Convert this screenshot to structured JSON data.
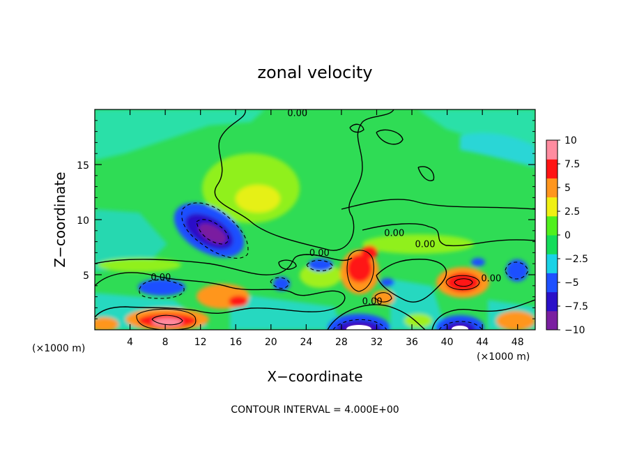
{
  "chart_data": {
    "type": "heatmap",
    "title": "zonal velocity",
    "xlabel": "X−coordinate",
    "ylabel": "Z−coordinate",
    "x_unit_left": "(×1000 m)",
    "x_unit_right": "(×1000 m)",
    "footer": "CONTOUR INTERVAL = 4.000E+00",
    "xlim": [
      0,
      50
    ],
    "ylim": [
      0,
      20
    ],
    "x_ticks": [
      4,
      8,
      12,
      16,
      20,
      24,
      28,
      32,
      36,
      40,
      44,
      48
    ],
    "y_ticks": [
      5,
      10,
      15
    ],
    "colorbar": {
      "range": [
        -10,
        10
      ],
      "ticks": [
        10,
        7.5,
        5,
        2.5,
        0,
        -2.5,
        -5,
        -7.5,
        -10
      ],
      "tick_labels": [
        "10",
        "7.5",
        "5",
        "2.5",
        "0",
        "−2.5",
        "−5",
        "−7.5",
        "−10"
      ],
      "colors": [
        "#7a1fa0",
        "#2a10c8",
        "#1e50ff",
        "#19d2e6",
        "#14dc5a",
        "#50f01e",
        "#f0f014",
        "#ff961e",
        "#ff1414",
        "#ff8ca0"
      ]
    },
    "contour_label": "0.00",
    "contour_label_positions": [
      [
        23,
        19.4
      ],
      [
        7.5,
        4.5
      ],
      [
        25.5,
        6.7
      ],
      [
        34,
        8.5
      ],
      [
        37.5,
        7.5
      ],
      [
        45,
        4.4
      ],
      [
        31.5,
        2.3
      ]
    ],
    "features": [
      {
        "x": 14,
        "z": 8.8,
        "value": -10
      },
      {
        "x": 18,
        "z": 12,
        "value": 2.5
      },
      {
        "x": 8.5,
        "z": 0.7,
        "value": 10
      },
      {
        "x": 31,
        "z": 5.5,
        "value": 7.5
      },
      {
        "x": 42,
        "z": 4.2,
        "value": 7.5
      },
      {
        "x": 30.5,
        "z": 0.3,
        "value": -10
      },
      {
        "x": 41.5,
        "z": 0.3,
        "value": -10
      },
      {
        "x": 6,
        "z": 4,
        "value": -5
      }
    ]
  }
}
